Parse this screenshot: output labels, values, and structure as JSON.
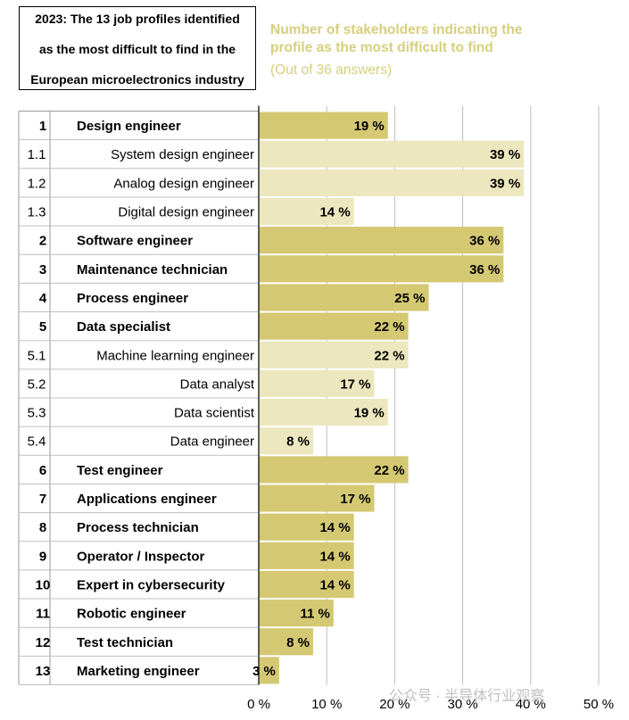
{
  "header": {
    "title_lines": [
      "2023: The 13 job profiles identified",
      "as the most difficult to find in the",
      "European microelectronics industry"
    ],
    "subtitle_lines": [
      "Number of stakeholders indicating the",
      "profile as the most difficult to find"
    ],
    "subtitle_note": "(Out of 36 answers)"
  },
  "colors": {
    "main_bar": "#d4c872",
    "sub_bar": "#ece7be",
    "grid": "#bdbdbd",
    "subtitle": "#d6cf7e"
  },
  "watermark": "公众号 · 半导体行业观察",
  "chart_data": {
    "type": "bar",
    "orientation": "horizontal",
    "xlim": [
      0,
      50
    ],
    "x_ticks": [
      "0 %",
      "10 %",
      "20 %",
      "30 %",
      "40 %",
      "50 %"
    ],
    "x_tick_values": [
      0,
      10,
      20,
      30,
      40,
      50
    ],
    "rows": [
      {
        "rank": "1",
        "label": "Design engineer",
        "value": 19,
        "value_label": "19 %",
        "main": true
      },
      {
        "rank": "1.1",
        "label": "System design engineer",
        "value": 39,
        "value_label": "39 %",
        "main": false
      },
      {
        "rank": "1.2",
        "label": "Analog design engineer",
        "value": 39,
        "value_label": "39 %",
        "main": false
      },
      {
        "rank": "1.3",
        "label": "Digital design engineer",
        "value": 14,
        "value_label": "14 %",
        "main": false
      },
      {
        "rank": "2",
        "label": "Software engineer",
        "value": 36,
        "value_label": "36 %",
        "main": true
      },
      {
        "rank": "3",
        "label": "Maintenance technician",
        "value": 36,
        "value_label": "36 %",
        "main": true
      },
      {
        "rank": "4",
        "label": "Process engineer",
        "value": 25,
        "value_label": "25 %",
        "main": true
      },
      {
        "rank": "5",
        "label": "Data specialist",
        "value": 22,
        "value_label": "22 %",
        "main": true
      },
      {
        "rank": "5.1",
        "label": "Machine learning engineer",
        "value": 22,
        "value_label": "22 %",
        "main": false
      },
      {
        "rank": "5.2",
        "label": "Data analyst",
        "value": 17,
        "value_label": "17 %",
        "main": false
      },
      {
        "rank": "5.3",
        "label": "Data scientist",
        "value": 19,
        "value_label": "19 %",
        "main": false
      },
      {
        "rank": "5.4",
        "label": "Data engineer",
        "value": 8,
        "value_label": "8 %",
        "main": false
      },
      {
        "rank": "6",
        "label": "Test engineer",
        "value": 22,
        "value_label": "22 %",
        "main": true
      },
      {
        "rank": "7",
        "label": "Applications engineer",
        "value": 17,
        "value_label": "17 %",
        "main": true
      },
      {
        "rank": "8",
        "label": "Process technician",
        "value": 14,
        "value_label": "14 %",
        "main": true
      },
      {
        "rank": "9",
        "label": "Operator / Inspector",
        "value": 14,
        "value_label": "14 %",
        "main": true
      },
      {
        "rank": "10",
        "label": "Expert in cybersecurity",
        "value": 14,
        "value_label": "14 %",
        "main": true
      },
      {
        "rank": "11",
        "label": "Robotic engineer",
        "value": 11,
        "value_label": "11 %",
        "main": true
      },
      {
        "rank": "12",
        "label": "Test technician",
        "value": 8,
        "value_label": "8 %",
        "main": true
      },
      {
        "rank": "13",
        "label": "Marketing engineer",
        "value": 3,
        "value_label": "3 %",
        "main": true
      }
    ]
  }
}
